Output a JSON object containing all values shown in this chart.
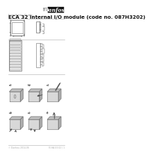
{
  "bg_color": "#ffffff",
  "title_series": "Installation Guide",
  "title_main": "ECA 32 internal I/O module (code no. 087H3202)",
  "title_fontsize": 5.2,
  "subtitle_fontsize": 2.8,
  "danfoss_box_color": "#111111",
  "footer_left": "© Danfoss 2014-06",
  "footer_right": "VI.HA.G3.02 | 1",
  "footer_fontsize": 2.2,
  "line_color": "#bbbbbb",
  "diag_color": "#666666",
  "step_labels": [
    "a)",
    "b)",
    "c)",
    "d)",
    "e)",
    "f)"
  ],
  "step_label_fontsize": 3.0,
  "device_face_color": "#d8d8d8",
  "device_top_color": "#c0c0c0",
  "device_side_color": "#b0b0b0",
  "device_edge_color": "#777777"
}
